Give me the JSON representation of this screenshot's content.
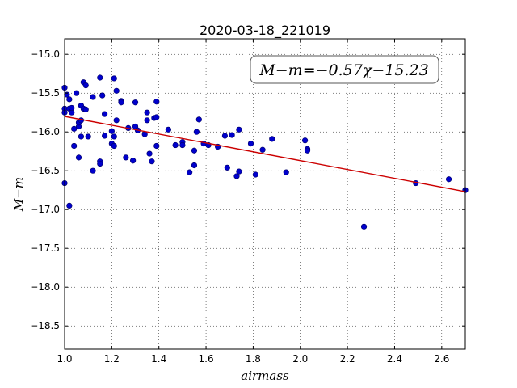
{
  "chart_data": {
    "type": "scatter",
    "title": "2020-03-18_221019",
    "xlabel": "airmass",
    "ylabel": "M−m",
    "xlim": [
      1.0,
      2.7
    ],
    "ylim": [
      -18.8,
      -14.8
    ],
    "y_inverted": true,
    "grid": true,
    "xticks": [
      1.0,
      1.2,
      1.4,
      1.6,
      1.8,
      2.0,
      2.2,
      2.4,
      2.6
    ],
    "xtick_labels": [
      "1.0",
      "1.2",
      "1.4",
      "1.6",
      "1.8",
      "2.0",
      "2.2",
      "2.4",
      "2.6"
    ],
    "yticks": [
      -15.0,
      -15.5,
      -16.0,
      -16.5,
      -17.0,
      -17.5,
      -18.0,
      -18.5
    ],
    "ytick_labels": [
      "−15.0",
      "−15.5",
      "−16.0",
      "−16.5",
      "−17.0",
      "−17.5",
      "−18.0",
      "−18.5"
    ],
    "annotation": "M−m=−0.57χ−15.23",
    "fit": {
      "slope": -0.57,
      "intercept": -15.23,
      "color": "#cc0000"
    },
    "point_color": "#0000cc",
    "points": [
      [
        1.0,
        -15.43
      ],
      [
        1.01,
        -15.52
      ],
      [
        1.0,
        -15.7
      ],
      [
        1.0,
        -15.75
      ],
      [
        1.0,
        -16.66
      ],
      [
        1.02,
        -15.58
      ],
      [
        1.02,
        -15.7
      ],
      [
        1.03,
        -15.75
      ],
      [
        1.03,
        -15.69
      ],
      [
        1.02,
        -16.95
      ],
      [
        1.05,
        -15.5
      ],
      [
        1.04,
        -15.96
      ],
      [
        1.04,
        -16.18
      ],
      [
        1.06,
        -15.93
      ],
      [
        1.06,
        -15.88
      ],
      [
        1.06,
        -16.33
      ],
      [
        1.07,
        -15.85
      ],
      [
        1.07,
        -15.66
      ],
      [
        1.08,
        -15.36
      ],
      [
        1.09,
        -15.4
      ],
      [
        1.08,
        -15.7
      ],
      [
        1.09,
        -15.71
      ],
      [
        1.07,
        -16.06
      ],
      [
        1.1,
        -16.06
      ],
      [
        1.12,
        -15.55
      ],
      [
        1.12,
        -16.5
      ],
      [
        1.15,
        -15.3
      ],
      [
        1.16,
        -15.53
      ],
      [
        1.15,
        -16.38
      ],
      [
        1.15,
        -16.41
      ],
      [
        1.17,
        -15.77
      ],
      [
        1.17,
        -16.05
      ],
      [
        1.2,
        -15.99
      ],
      [
        1.2,
        -16.15
      ],
      [
        1.21,
        -16.18
      ],
      [
        1.21,
        -16.06
      ],
      [
        1.21,
        -15.31
      ],
      [
        1.22,
        -15.47
      ],
      [
        1.22,
        -15.85
      ],
      [
        1.24,
        -15.6
      ],
      [
        1.24,
        -15.62
      ],
      [
        1.26,
        -16.33
      ],
      [
        1.27,
        -15.95
      ],
      [
        1.29,
        -16.37
      ],
      [
        1.3,
        -15.62
      ],
      [
        1.3,
        -15.93
      ],
      [
        1.31,
        -15.98
      ],
      [
        1.34,
        -16.03
      ],
      [
        1.35,
        -15.75
      ],
      [
        1.35,
        -15.85
      ],
      [
        1.36,
        -16.28
      ],
      [
        1.37,
        -16.38
      ],
      [
        1.38,
        -15.82
      ],
      [
        1.39,
        -15.81
      ],
      [
        1.39,
        -15.61
      ],
      [
        1.39,
        -16.18
      ],
      [
        1.44,
        -15.97
      ],
      [
        1.47,
        -16.17
      ],
      [
        1.5,
        -16.13
      ],
      [
        1.5,
        -16.17
      ],
      [
        1.53,
        -16.52
      ],
      [
        1.55,
        -16.43
      ],
      [
        1.55,
        -16.24
      ],
      [
        1.56,
        -16.0
      ],
      [
        1.57,
        -15.84
      ],
      [
        1.59,
        -16.15
      ],
      [
        1.61,
        -16.17
      ],
      [
        1.65,
        -16.19
      ],
      [
        1.68,
        -16.05
      ],
      [
        1.69,
        -16.46
      ],
      [
        1.71,
        -16.04
      ],
      [
        1.73,
        -16.57
      ],
      [
        1.74,
        -16.51
      ],
      [
        1.74,
        -15.97
      ],
      [
        1.79,
        -16.15
      ],
      [
        1.81,
        -16.55
      ],
      [
        1.84,
        -16.23
      ],
      [
        1.88,
        -16.09
      ],
      [
        1.94,
        -16.52
      ],
      [
        2.02,
        -16.11
      ],
      [
        2.03,
        -16.22
      ],
      [
        2.03,
        -16.24
      ],
      [
        2.27,
        -17.22
      ],
      [
        2.49,
        -16.66
      ],
      [
        2.63,
        -16.61
      ],
      [
        2.7,
        -16.75
      ]
    ]
  }
}
